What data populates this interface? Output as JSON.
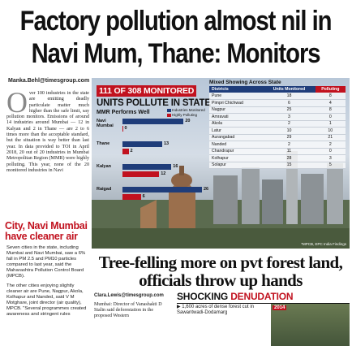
{
  "headline": {
    "line1": "Factory pollution almost nil in",
    "line2": "Navi Mum, Thane: Monitors"
  },
  "byline": "Manka.Behl@timesgroup.com",
  "lead": {
    "dropcap": "O",
    "text": "ver 100 industries in the state are emitting deadly particulate matter much higher than the safe limit, say pollution monitors. Emissions of around 14 industries around Mumbai — 12 in Kalyan and 2 in Thane — are 2 to 6 times more than the acceptable standard, but the situation is way better than last year. In data provided to TOI in April 2018, 20 out of 20 industries in Mumbai Metropolitan Region (MMR) were highly polluting. This year, none of the 20 monitored industries in Navi"
  },
  "sidebar": {
    "headline": "City, Navi Mumbai have cleaner air",
    "paragraphs": [
      "Seven cities in the state, including Mumbai and Navi Mumbai, saw a 6% fall in PM 2.5 and PM10 particles compared to last year, said the Maharashtra Pollution Control Board (MPCB).",
      "The other cities enjoying slightly cleaner air are Pune, Nagpur, Akola, Kolhapur and Nanded, said V M Motghare, joint director (air quality), MPCB. \"Several programmes created awareness and stringent rules"
    ]
  },
  "graphic": {
    "title_red": "111 OF 308 MONITORED",
    "title_black": "UNITS POLLUTE IN STATE",
    "mmr_title": "MMR Performs Well",
    "legend": {
      "monitored": "Industries Monitored",
      "polluting": "Highly Polluting"
    },
    "credit": "*MPCB, EPC India Findings",
    "table_title": "Mixed Showing Across State"
  },
  "chart_data": {
    "type": "bar",
    "title": "MMR Performs Well",
    "categories": [
      "Navi Mumbai",
      "Thane",
      "Kalyan",
      "Raigad"
    ],
    "series": [
      {
        "name": "Industries Monitored",
        "values": [
          20,
          13,
          16,
          26
        ]
      },
      {
        "name": "Highly Polluting",
        "values": [
          0,
          2,
          12,
          6
        ]
      }
    ],
    "xlim": [
      0,
      26
    ]
  },
  "state_table": {
    "headers": [
      "Districts",
      "Units Monitored",
      "Polluting"
    ],
    "rows": [
      [
        "Pune",
        "18",
        "8"
      ],
      [
        "Pimpri Chichwad",
        "6",
        "4"
      ],
      [
        "Nagpur",
        "25",
        "8"
      ],
      [
        "Amravati",
        "3",
        "0"
      ],
      [
        "Akola",
        "2",
        "1"
      ],
      [
        "Latur",
        "10",
        "10"
      ],
      [
        "Aurangabad",
        "29",
        "21"
      ],
      [
        "Nanded",
        "2",
        "2"
      ],
      [
        "Chandrapur",
        "11",
        "0"
      ],
      [
        "Kolhapur",
        "28",
        "3"
      ],
      [
        "Solapur",
        "15",
        "5"
      ]
    ]
  },
  "story2": {
    "headline": "Tree-felling more on pvt forest land, officials throw up hands",
    "byline": "Clara.Lewis@timesgroup.com",
    "text": "Mumbai: Director of Vanashakti D Stalin said deforestation in the proposed Western"
  },
  "shock": {
    "head_black": "SHOCKING",
    "head_red": "DENUDATION",
    "bullet": "▶ 1,600 acres of dense forest cut in Sawantwadi-Dodamarg",
    "photo_year": "2014"
  },
  "colors": {
    "accent_red": "#c1121f",
    "navy": "#1f3d7a"
  }
}
